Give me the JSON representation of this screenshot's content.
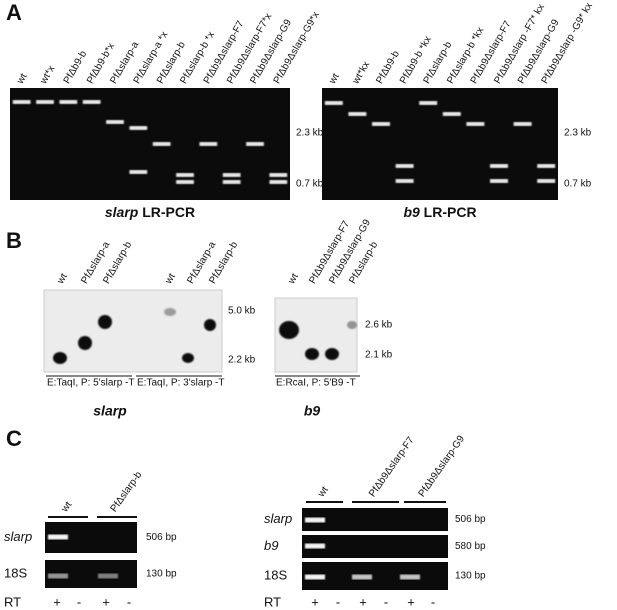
{
  "panel_a": {
    "label": "A",
    "gels": [
      {
        "lanes": [
          "wt",
          "wt*x",
          "PfΔb9-b",
          "PfΔb9-b*x",
          "PfΔslarp-a",
          "PfΔslarp-a *x",
          "PfΔslarp-b",
          "PfΔslarp-b *x",
          "PfΔb9Δslarp-F7",
          "PfΔb9Δslarp-F7*x",
          "PfΔb9Δslarp-G9",
          "PfΔb9Δslarp-G9*x"
        ],
        "markers": [
          "2.3 kb",
          "0.7 kb"
        ],
        "caption": {
          "gene": "slarp",
          "text": "LR-PCR"
        }
      },
      {
        "lanes": [
          "wt",
          "wt*kx",
          "PfΔb9-b",
          "PfΔb9-b *kx",
          "PfΔslarp-b",
          "PfΔslarp-b *kx",
          "PfΔb9Δslarp-F7",
          "PfΔb9Δslarp -F7* kx",
          "PfΔb9Δslarp-G9",
          "PfΔb9Δslarp -G9* kx"
        ],
        "markers": [
          "2.3 kb",
          "0.7 kb"
        ],
        "caption": {
          "gene": "b9",
          "text": "LR-PCR"
        }
      }
    ]
  },
  "panel_b": {
    "label": "B",
    "blots": [
      {
        "lanes": [
          "wt",
          "PfΔslarp-a",
          "PfΔslarp-b",
          "wt",
          "PfΔslarp-a",
          "PfΔslarp-b"
        ],
        "markers": [
          "5.0 kb",
          "2.2 kb"
        ],
        "conditions": [
          "E:TaqI, P: 5'slarp -T",
          "E:TaqI, P: 3'slarp -T"
        ],
        "caption": "slarp"
      },
      {
        "lanes": [
          "wt",
          "PfΔb9Δslarp-F7",
          "PfΔb9Δslarp-G9",
          "PfΔslarp-b"
        ],
        "markers": [
          "2.6 kb",
          "2.1 kb"
        ],
        "conditions": [
          "E:RcaI, P: 5'B9 -T"
        ],
        "caption": "b9"
      }
    ]
  },
  "panel_c": {
    "label": "C",
    "blocks": [
      {
        "groups": [
          "wt",
          "PfΔslarp-b"
        ],
        "rows": [
          {
            "gene": "slarp",
            "size": "506 bp"
          },
          {
            "gene": "18S",
            "size": "130 bp"
          }
        ],
        "rt": {
          "label": "RT",
          "signs": [
            "+",
            "-",
            "+",
            "-"
          ]
        }
      },
      {
        "groups": [
          "wt",
          "PfΔb9Δslarp-F7",
          "PfΔb9Δslarp-G9"
        ],
        "rows": [
          {
            "gene": "slarp",
            "size": "506 bp"
          },
          {
            "gene": "b9",
            "size": "580 bp"
          },
          {
            "gene": "18S",
            "size": "130 bp"
          }
        ],
        "rt": {
          "label": "RT",
          "signs": [
            "+",
            "-",
            "+",
            "-",
            "+",
            "-"
          ]
        }
      }
    ]
  }
}
